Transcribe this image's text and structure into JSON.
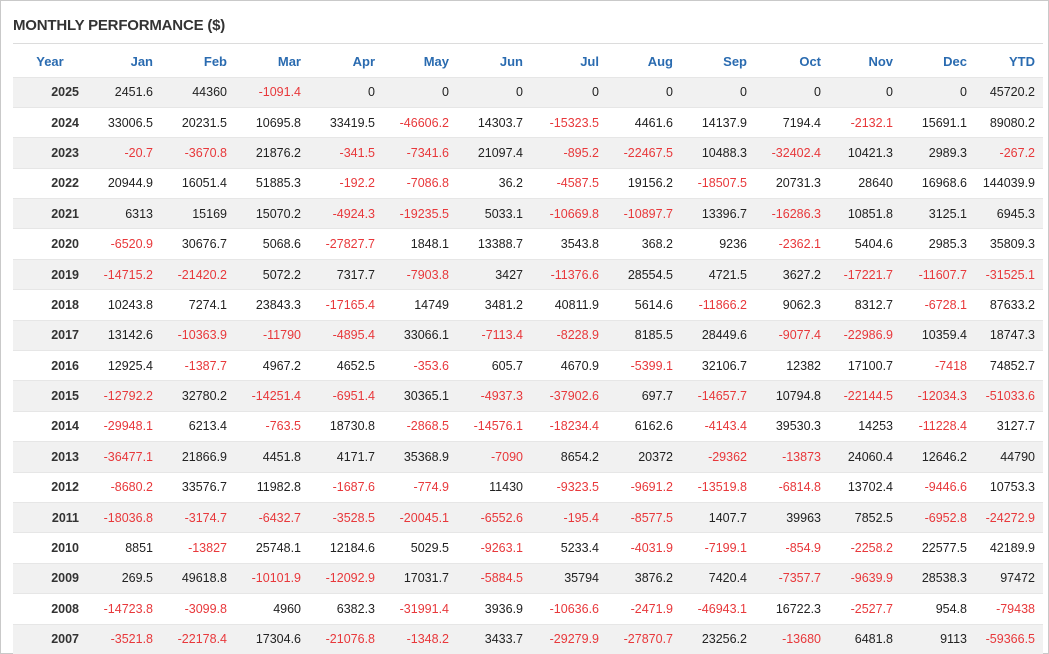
{
  "title": "MONTHLY PERFORMANCE ($)",
  "colors": {
    "header_text": "#2a6bb0",
    "negative": "#e8383b",
    "stripe": "#f1f1f1"
  },
  "columns": [
    "Year",
    "Jan",
    "Feb",
    "Mar",
    "Apr",
    "May",
    "Jun",
    "Jul",
    "Aug",
    "Sep",
    "Oct",
    "Nov",
    "Dec",
    "YTD"
  ],
  "rows": [
    [
      "2025",
      "2451.6",
      "44360",
      "-1091.4",
      "0",
      "0",
      "0",
      "0",
      "0",
      "0",
      "0",
      "0",
      "0",
      "45720.2"
    ],
    [
      "2024",
      "33006.5",
      "20231.5",
      "10695.8",
      "33419.5",
      "-46606.2",
      "14303.7",
      "-15323.5",
      "4461.6",
      "14137.9",
      "7194.4",
      "-2132.1",
      "15691.1",
      "89080.2"
    ],
    [
      "2023",
      "-20.7",
      "-3670.8",
      "21876.2",
      "-341.5",
      "-7341.6",
      "21097.4",
      "-895.2",
      "-22467.5",
      "10488.3",
      "-32402.4",
      "10421.3",
      "2989.3",
      "-267.2"
    ],
    [
      "2022",
      "20944.9",
      "16051.4",
      "51885.3",
      "-192.2",
      "-7086.8",
      "36.2",
      "-4587.5",
      "19156.2",
      "-18507.5",
      "20731.3",
      "28640",
      "16968.6",
      "144039.9"
    ],
    [
      "2021",
      "6313",
      "15169",
      "15070.2",
      "-4924.3",
      "-19235.5",
      "5033.1",
      "-10669.8",
      "-10897.7",
      "13396.7",
      "-16286.3",
      "10851.8",
      "3125.1",
      "6945.3"
    ],
    [
      "2020",
      "-6520.9",
      "30676.7",
      "5068.6",
      "-27827.7",
      "1848.1",
      "13388.7",
      "3543.8",
      "368.2",
      "9236",
      "-2362.1",
      "5404.6",
      "2985.3",
      "35809.3"
    ],
    [
      "2019",
      "-14715.2",
      "-21420.2",
      "5072.2",
      "7317.7",
      "-7903.8",
      "3427",
      "-11376.6",
      "28554.5",
      "4721.5",
      "3627.2",
      "-17221.7",
      "-11607.7",
      "-31525.1"
    ],
    [
      "2018",
      "10243.8",
      "7274.1",
      "23843.3",
      "-17165.4",
      "14749",
      "3481.2",
      "40811.9",
      "5614.6",
      "-11866.2",
      "9062.3",
      "8312.7",
      "-6728.1",
      "87633.2"
    ],
    [
      "2017",
      "13142.6",
      "-10363.9",
      "-11790",
      "-4895.4",
      "33066.1",
      "-7113.4",
      "-8228.9",
      "8185.5",
      "28449.6",
      "-9077.4",
      "-22986.9",
      "10359.4",
      "18747.3"
    ],
    [
      "2016",
      "12925.4",
      "-1387.7",
      "4967.2",
      "4652.5",
      "-353.6",
      "605.7",
      "4670.9",
      "-5399.1",
      "32106.7",
      "12382",
      "17100.7",
      "-7418",
      "74852.7"
    ],
    [
      "2015",
      "-12792.2",
      "32780.2",
      "-14251.4",
      "-6951.4",
      "30365.1",
      "-4937.3",
      "-37902.6",
      "697.7",
      "-14657.7",
      "10794.8",
      "-22144.5",
      "-12034.3",
      "-51033.6"
    ],
    [
      "2014",
      "-29948.1",
      "6213.4",
      "-763.5",
      "18730.8",
      "-2868.5",
      "-14576.1",
      "-18234.4",
      "6162.6",
      "-4143.4",
      "39530.3",
      "14253",
      "-11228.4",
      "3127.7"
    ],
    [
      "2013",
      "-36477.1",
      "21866.9",
      "4451.8",
      "4171.7",
      "35368.9",
      "-7090",
      "8654.2",
      "20372",
      "-29362",
      "-13873",
      "24060.4",
      "12646.2",
      "44790"
    ],
    [
      "2012",
      "-8680.2",
      "33576.7",
      "11982.8",
      "-1687.6",
      "-774.9",
      "11430",
      "-9323.5",
      "-9691.2",
      "-13519.8",
      "-6814.8",
      "13702.4",
      "-9446.6",
      "10753.3"
    ],
    [
      "2011",
      "-18036.8",
      "-3174.7",
      "-6432.7",
      "-3528.5",
      "-20045.1",
      "-6552.6",
      "-195.4",
      "-8577.5",
      "1407.7",
      "39963",
      "7852.5",
      "-6952.8",
      "-24272.9"
    ],
    [
      "2010",
      "8851",
      "-13827",
      "25748.1",
      "12184.6",
      "5029.5",
      "-9263.1",
      "5233.4",
      "-4031.9",
      "-7199.1",
      "-854.9",
      "-2258.2",
      "22577.5",
      "42189.9"
    ],
    [
      "2009",
      "269.5",
      "49618.8",
      "-10101.9",
      "-12092.9",
      "17031.7",
      "-5884.5",
      "35794",
      "3876.2",
      "7420.4",
      "-7357.7",
      "-9639.9",
      "28538.3",
      "97472"
    ],
    [
      "2008",
      "-14723.8",
      "-3099.8",
      "4960",
      "6382.3",
      "-31991.4",
      "3936.9",
      "-10636.6",
      "-2471.9",
      "-46943.1",
      "16722.3",
      "-2527.7",
      "954.8",
      "-79438"
    ],
    [
      "2007",
      "-3521.8",
      "-22178.4",
      "17304.6",
      "-21076.8",
      "-1348.2",
      "3433.7",
      "-29279.9",
      "-27870.7",
      "23256.2",
      "-13680",
      "6481.8",
      "9113",
      "-59366.5"
    ]
  ]
}
